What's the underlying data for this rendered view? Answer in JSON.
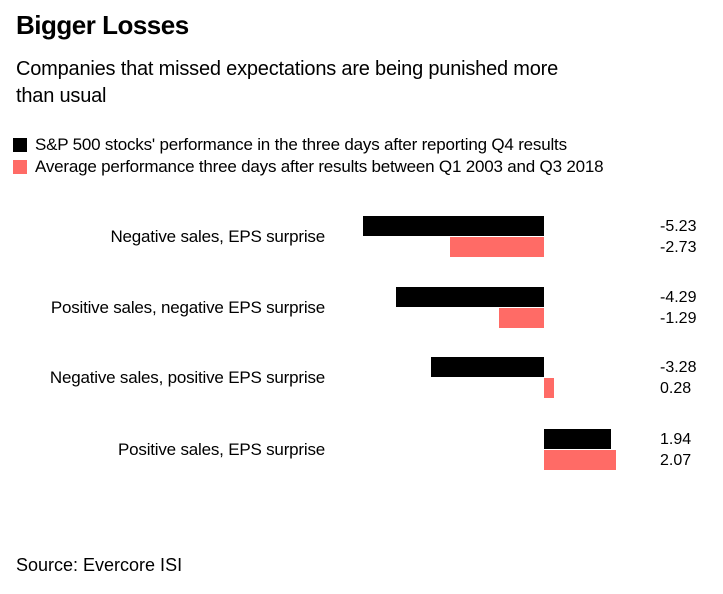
{
  "header": {
    "title": "Bigger Losses",
    "subtitle": "Companies that missed expectations are being punished more\nthan usual"
  },
  "legend": [
    {
      "label": "S&P 500 stocks' performance in the three days after reporting Q4 results",
      "color": "#000000"
    },
    {
      "label": "Average performance three days after results between Q1 2003 and Q3 2018",
      "color": "#FF6B66"
    }
  ],
  "chart_data": {
    "type": "bar",
    "orientation": "horizontal",
    "title": "Bigger Losses",
    "subtitle": "Companies that missed expectations are being punished more than usual",
    "categories": [
      "Negative sales, EPS surprise",
      "Positive sales, negative EPS surprise",
      "Negative sales, positive EPS surprise",
      "Positive sales, EPS surprise"
    ],
    "series": [
      {
        "name": "S&P 500 stocks' performance in the three days after reporting Q4 results",
        "color": "#000000",
        "values": [
          -5.23,
          -4.29,
          -3.28,
          1.94
        ]
      },
      {
        "name": "Average performance three days after results between Q1 2003 and Q3 2018",
        "color": "#FF6B66",
        "values": [
          -2.73,
          -1.29,
          0.28,
          2.07
        ]
      }
    ],
    "xlim": [
      -5.23,
      2.07
    ],
    "grid": false,
    "legend_position": "top",
    "value_labels_shown": true
  },
  "source": "Source: Evercore ISI",
  "colors": {
    "series1": "#000000",
    "series2": "#FF6B66",
    "background": "#ffffff"
  }
}
